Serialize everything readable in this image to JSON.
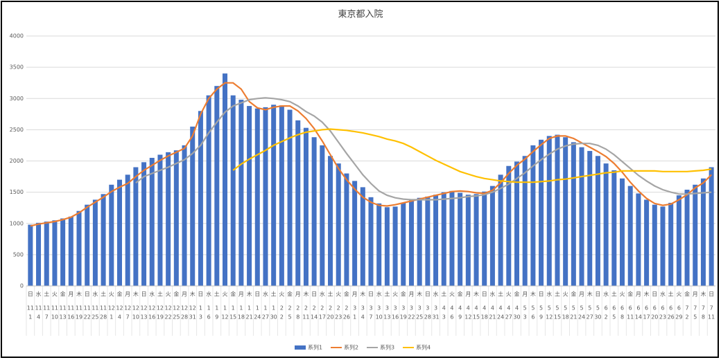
{
  "chart_data": {
    "type": "bar",
    "title": "東京都入院",
    "weekdays": [
      "日",
      "水",
      "土",
      "火",
      "金",
      "月",
      "木",
      "日",
      "水",
      "土",
      "火",
      "金",
      "月",
      "木",
      "日",
      "水",
      "土",
      "火",
      "金",
      "月",
      "木",
      "日",
      "水",
      "土",
      "火",
      "金",
      "月",
      "木",
      "日",
      "水",
      "土",
      "火",
      "金",
      "月",
      "木",
      "日",
      "水",
      "土",
      "火",
      "金",
      "月",
      "木",
      "日",
      "水",
      "土",
      "火",
      "金",
      "月",
      "木",
      "日",
      "水",
      "土",
      "火",
      "金",
      "月",
      "木",
      "日",
      "水",
      "土",
      "火",
      "金",
      "月",
      "木",
      "日",
      "水",
      "土",
      "火",
      "金",
      "月",
      "木",
      "日",
      "水",
      "土",
      "火",
      "金",
      "月",
      "木",
      "日",
      "水",
      "土",
      "火",
      "金",
      "月",
      "木",
      "日"
    ],
    "months": [
      "11",
      "11",
      "11",
      "11",
      "11",
      "11",
      "11",
      "11",
      "11",
      "11",
      "12",
      "12",
      "12",
      "12",
      "12",
      "12",
      "12",
      "12",
      "12",
      "12",
      "12",
      "1",
      "1",
      "1",
      "1",
      "1",
      "1",
      "1",
      "1",
      "1",
      "1",
      "2",
      "2",
      "2",
      "2",
      "2",
      "2",
      "2",
      "2",
      "2",
      "3",
      "3",
      "3",
      "3",
      "3",
      "3",
      "3",
      "3",
      "3",
      "3",
      "3",
      "4",
      "4",
      "4",
      "4",
      "4",
      "4",
      "4",
      "4",
      "4",
      "4",
      "5",
      "5",
      "5",
      "5",
      "5",
      "5",
      "5",
      "5",
      "5",
      "5",
      "6",
      "6",
      "6",
      "6",
      "6",
      "6",
      "6",
      "6",
      "6",
      "6",
      "7",
      "7",
      "7",
      "7"
    ],
    "categories": [
      "1",
      "4",
      "7",
      "10",
      "13",
      "16",
      "19",
      "22",
      "25",
      "28",
      "1",
      "4",
      "7",
      "10",
      "13",
      "16",
      "19",
      "22",
      "25",
      "28",
      "31",
      "3",
      "6",
      "9",
      "12",
      "15",
      "18",
      "21",
      "24",
      "27",
      "30",
      "2",
      "5",
      "8",
      "11",
      "14",
      "17",
      "20",
      "23",
      "26",
      "1",
      "4",
      "7",
      "10",
      "13",
      "16",
      "19",
      "22",
      "25",
      "28",
      "31",
      "3",
      "6",
      "9",
      "12",
      "15",
      "18",
      "21",
      "24",
      "27",
      "30",
      "3",
      "6",
      "9",
      "12",
      "15",
      "18",
      "21",
      "24",
      "27",
      "30",
      "2",
      "5",
      "8",
      "11",
      "14",
      "17",
      "20",
      "23",
      "26",
      "29",
      "2",
      "5",
      "8",
      "11"
    ],
    "ylim": [
      0,
      4000
    ],
    "yticks": [
      0,
      500,
      1000,
      1500,
      2000,
      2500,
      3000,
      3500,
      4000
    ],
    "grid": true,
    "legend": "bottom",
    "series": [
      {
        "name": "系列1",
        "type": "bar",
        "color": "#4472c4",
        "values": [
          980,
          1010,
          1030,
          1050,
          1080,
          1110,
          1200,
          1300,
          1380,
          1470,
          1620,
          1700,
          1780,
          1900,
          1980,
          2050,
          2100,
          2140,
          2170,
          2250,
          2550,
          2800,
          3050,
          3200,
          3400,
          3050,
          2980,
          2880,
          2840,
          2860,
          2900,
          2890,
          2820,
          2650,
          2530,
          2380,
          2250,
          2080,
          1960,
          1800,
          1680,
          1580,
          1420,
          1320,
          1260,
          1270,
          1330,
          1370,
          1410,
          1430,
          1460,
          1500,
          1520,
          1490,
          1460,
          1470,
          1510,
          1600,
          1780,
          1920,
          1990,
          2080,
          2250,
          2340,
          2400,
          2420,
          2380,
          2300,
          2220,
          2160,
          2080,
          1960,
          1850,
          1720,
          1600,
          1480,
          1380,
          1300,
          1270,
          1330,
          1450,
          1540,
          1620,
          1720,
          1900
        ]
      },
      {
        "name": "系列2",
        "type": "line",
        "color": "#ed7d31",
        "values": [
          960,
          990,
          1010,
          1030,
          1060,
          1100,
          1170,
          1260,
          1340,
          1420,
          1510,
          1580,
          1640,
          1750,
          1850,
          1930,
          2010,
          2080,
          2140,
          2200,
          2400,
          2750,
          3000,
          3150,
          3250,
          3250,
          3150,
          2950,
          2850,
          2820,
          2860,
          2880,
          2880,
          2800,
          2680,
          2520,
          2320,
          2100,
          1880,
          1700,
          1550,
          1420,
          1340,
          1290,
          1280,
          1300,
          1330,
          1360,
          1390,
          1420,
          1450,
          1480,
          1510,
          1520,
          1510,
          1490,
          1480,
          1530,
          1650,
          1800,
          1930,
          2030,
          2150,
          2260,
          2360,
          2400,
          2400,
          2360,
          2290,
          2220,
          2150,
          2070,
          1960,
          1820,
          1660,
          1520,
          1400,
          1320,
          1290,
          1310,
          1380,
          1460,
          1570,
          1650,
          1780
        ]
      },
      {
        "name": "系列3",
        "type": "line",
        "color": "#a5a5a5",
        "values": [
          null,
          null,
          null,
          null,
          null,
          null,
          null,
          null,
          null,
          null,
          null,
          null,
          null,
          1650,
          1750,
          1800,
          1850,
          1900,
          1960,
          2020,
          2120,
          2250,
          2450,
          2620,
          2780,
          2880,
          2930,
          2980,
          3000,
          3010,
          3000,
          2980,
          2950,
          2880,
          2790,
          2720,
          2620,
          2480,
          2300,
          2120,
          1950,
          1780,
          1640,
          1520,
          1450,
          1410,
          1390,
          1380,
          1380,
          1380,
          1380,
          1390,
          1400,
          1410,
          1430,
          1440,
          1460,
          1500,
          1560,
          1630,
          1720,
          1810,
          1920,
          2020,
          2110,
          2190,
          2240,
          2270,
          2280,
          2280,
          2250,
          2190,
          2100,
          1990,
          1880,
          1770,
          1680,
          1600,
          1540,
          1500,
          1470,
          1470,
          1480,
          1490,
          1500
        ]
      },
      {
        "name": "系列4",
        "type": "line",
        "color": "#ffc000",
        "values": [
          null,
          null,
          null,
          null,
          null,
          null,
          null,
          null,
          null,
          null,
          null,
          null,
          null,
          null,
          null,
          null,
          null,
          null,
          null,
          null,
          null,
          null,
          null,
          null,
          null,
          1850,
          1950,
          2030,
          2100,
          2170,
          2250,
          2310,
          2370,
          2420,
          2460,
          2480,
          2500,
          2510,
          2500,
          2490,
          2470,
          2450,
          2420,
          2390,
          2350,
          2320,
          2280,
          2220,
          2150,
          2080,
          2010,
          1950,
          1890,
          1830,
          1790,
          1750,
          1720,
          1700,
          1680,
          1670,
          1660,
          1660,
          1660,
          1670,
          1680,
          1700,
          1710,
          1730,
          1750,
          1770,
          1790,
          1810,
          1820,
          1840,
          1840,
          1840,
          1840,
          1840,
          1830,
          1830,
          1830,
          1830,
          1840,
          1850,
          1870
        ]
      }
    ]
  }
}
